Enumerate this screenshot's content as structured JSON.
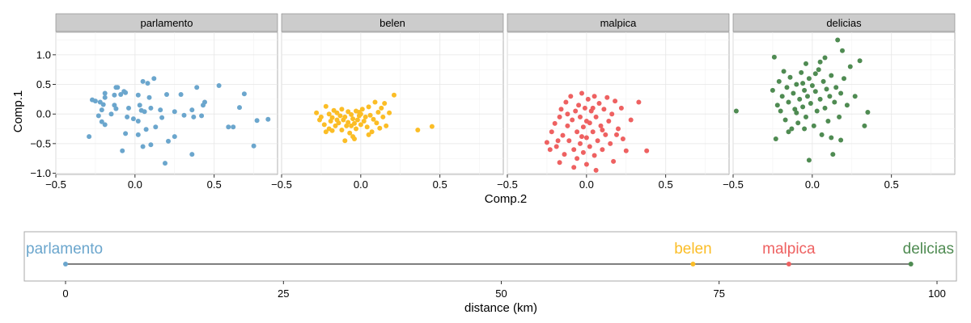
{
  "chart_data": [
    {
      "type": "scatter",
      "facets": [
        {
          "name": "parlamento",
          "color": "#6ba6cd",
          "points": [
            [
              -0.27,
              0.24
            ],
            [
              -0.25,
              0.22
            ],
            [
              -0.22,
              0.2
            ],
            [
              -0.19,
              0.35
            ],
            [
              -0.19,
              0.28
            ],
            [
              -0.2,
              0.16
            ],
            [
              -0.21,
              0.07
            ],
            [
              -0.23,
              -0.03
            ],
            [
              -0.21,
              -0.13
            ],
            [
              -0.19,
              -0.18
            ],
            [
              -0.13,
              0.32
            ],
            [
              -0.12,
              0.45
            ],
            [
              -0.11,
              0.45
            ],
            [
              -0.13,
              0.15
            ],
            [
              -0.12,
              0.09
            ],
            [
              -0.09,
              0.33
            ],
            [
              -0.07,
              0.38
            ],
            [
              -0.06,
              0.36
            ],
            [
              -0.05,
              -0.05
            ],
            [
              -0.04,
              0.1
            ],
            [
              -0.01,
              -0.08
            ],
            [
              -0.06,
              -0.33
            ],
            [
              -0.08,
              -0.62
            ],
            [
              0.02,
              -0.12
            ],
            [
              0.02,
              0.32
            ],
            [
              0.03,
              0.15
            ],
            [
              0.06,
              0.04
            ],
            [
              0.04,
              0.06
            ],
            [
              0.07,
              -0.26
            ],
            [
              0.05,
              -0.55
            ],
            [
              0.05,
              0.55
            ],
            [
              0.08,
              0.52
            ],
            [
              0.09,
              0.28
            ],
            [
              0.1,
              0.1
            ],
            [
              0.12,
              0.6
            ],
            [
              0.13,
              -0.22
            ],
            [
              0.16,
              0.07
            ],
            [
              0.17,
              -0.06
            ],
            [
              0.2,
              0.33
            ],
            [
              0.21,
              -0.46
            ],
            [
              0.19,
              -0.83
            ],
            [
              0.25,
              0.04
            ],
            [
              0.25,
              -0.38
            ],
            [
              0.29,
              0.33
            ],
            [
              0.36,
              0.07
            ],
            [
              0.37,
              -0.05
            ],
            [
              0.39,
              0.45
            ],
            [
              0.43,
              0.15
            ],
            [
              0.44,
              0.2
            ],
            [
              0.36,
              -0.68
            ],
            [
              0.42,
              -0.03
            ],
            [
              0.53,
              0.48
            ],
            [
              0.59,
              -0.22
            ],
            [
              0.62,
              -0.22
            ],
            [
              0.66,
              0.11
            ],
            [
              0.69,
              0.34
            ],
            [
              0.75,
              -0.54
            ],
            [
              0.77,
              -0.11
            ],
            [
              0.84,
              -0.09
            ],
            [
              -0.29,
              -0.38
            ],
            [
              0.1,
              -0.52
            ],
            [
              0.02,
              -0.35
            ],
            [
              -0.15,
              0.0
            ],
            [
              0.31,
              -0.02
            ]
          ]
        },
        {
          "name": "belen",
          "color": "#fbbd26",
          "points": [
            [
              -0.28,
              0.02
            ],
            [
              -0.26,
              -0.1
            ],
            [
              -0.25,
              -0.05
            ],
            [
              -0.23,
              -0.18
            ],
            [
              -0.22,
              0.13
            ],
            [
              -0.2,
              -0.25
            ],
            [
              -0.2,
              0.0
            ],
            [
              -0.19,
              -0.12
            ],
            [
              -0.18,
              -0.06
            ],
            [
              -0.17,
              0.06
            ],
            [
              -0.16,
              -0.2
            ],
            [
              -0.15,
              0.02
            ],
            [
              -0.14,
              -0.15
            ],
            [
              -0.13,
              -0.03
            ],
            [
              -0.12,
              -0.27
            ],
            [
              -0.12,
              0.08
            ],
            [
              -0.11,
              -0.1
            ],
            [
              -0.1,
              -0.05
            ],
            [
              -0.09,
              -0.2
            ],
            [
              -0.08,
              0.04
            ],
            [
              -0.08,
              -0.14
            ],
            [
              -0.07,
              -0.32
            ],
            [
              -0.06,
              -0.01
            ],
            [
              -0.06,
              -0.2
            ],
            [
              -0.05,
              -0.08
            ],
            [
              -0.04,
              -0.16
            ],
            [
              -0.03,
              0.05
            ],
            [
              -0.03,
              -0.25
            ],
            [
              -0.02,
              -0.1
            ],
            [
              -0.01,
              -0.03
            ],
            [
              0.0,
              -0.18
            ],
            [
              0.01,
              0.08
            ],
            [
              0.02,
              -0.12
            ],
            [
              0.03,
              -0.05
            ],
            [
              0.04,
              -0.22
            ],
            [
              0.05,
              0.12
            ],
            [
              0.06,
              -0.02
            ],
            [
              0.07,
              -0.3
            ],
            [
              0.08,
              -0.09
            ],
            [
              0.09,
              0.2
            ],
            [
              0.1,
              -0.15
            ],
            [
              0.11,
              0.03
            ],
            [
              0.12,
              -0.24
            ],
            [
              0.13,
              0.1
            ],
            [
              0.14,
              -0.05
            ],
            [
              0.15,
              0.18
            ],
            [
              0.16,
              -0.2
            ],
            [
              0.18,
              0.02
            ],
            [
              0.21,
              0.32
            ],
            [
              0.36,
              -0.27
            ],
            [
              0.45,
              -0.21
            ],
            [
              -0.1,
              -0.45
            ],
            [
              -0.05,
              -0.38
            ],
            [
              -0.18,
              -0.28
            ],
            [
              0.0,
              0.0
            ],
            [
              -0.15,
              -0.1
            ],
            [
              0.05,
              -0.35
            ],
            [
              -0.22,
              -0.3
            ],
            [
              -0.01,
              0.03
            ],
            [
              -0.04,
              -0.42
            ]
          ]
        },
        {
          "name": "malpica",
          "color": "#ee6161",
          "points": [
            [
              -0.25,
              -0.48
            ],
            [
              -0.23,
              -0.6
            ],
            [
              -0.22,
              -0.3
            ],
            [
              -0.2,
              -0.16
            ],
            [
              -0.19,
              -0.55
            ],
            [
              -0.17,
              -0.05
            ],
            [
              -0.17,
              -0.82
            ],
            [
              -0.16,
              0.08
            ],
            [
              -0.15,
              -0.36
            ],
            [
              -0.14,
              -0.68
            ],
            [
              -0.13,
              0.2
            ],
            [
              -0.12,
              -0.2
            ],
            [
              -0.11,
              -0.45
            ],
            [
              -0.1,
              0.3
            ],
            [
              -0.09,
              -0.1
            ],
            [
              -0.08,
              -0.6
            ],
            [
              -0.07,
              0.05
            ],
            [
              -0.06,
              -0.3
            ],
            [
              -0.06,
              -0.75
            ],
            [
              -0.05,
              0.15
            ],
            [
              -0.04,
              -0.05
            ],
            [
              -0.04,
              -0.5
            ],
            [
              -0.03,
              0.35
            ],
            [
              -0.02,
              -0.22
            ],
            [
              -0.02,
              -0.65
            ],
            [
              -0.01,
              0.1
            ],
            [
              0.0,
              -0.4
            ],
            [
              0.0,
              -0.85
            ],
            [
              0.01,
              0.25
            ],
            [
              0.02,
              -0.15
            ],
            [
              0.02,
              -0.55
            ],
            [
              0.03,
              0.05
            ],
            [
              0.04,
              -0.3
            ],
            [
              0.05,
              0.3
            ],
            [
              0.05,
              -0.7
            ],
            [
              0.06,
              -0.05
            ],
            [
              0.07,
              -0.45
            ],
            [
              0.08,
              0.18
            ],
            [
              0.09,
              -0.2
            ],
            [
              0.1,
              -0.6
            ],
            [
              0.11,
              0.08
            ],
            [
              0.12,
              -0.35
            ],
            [
              0.13,
              0.28
            ],
            [
              0.14,
              -0.12
            ],
            [
              0.15,
              -0.5
            ],
            [
              0.16,
              0.0
            ],
            [
              0.17,
              -0.8
            ],
            [
              0.18,
              0.22
            ],
            [
              0.2,
              -0.25
            ],
            [
              0.22,
              0.1
            ],
            [
              0.23,
              -0.42
            ],
            [
              0.25,
              -0.62
            ],
            [
              0.28,
              -0.1
            ],
            [
              0.33,
              0.2
            ],
            [
              0.38,
              -0.62
            ],
            [
              -0.08,
              -0.9
            ],
            [
              0.06,
              -0.95
            ],
            [
              -0.03,
              -0.38
            ],
            [
              0.1,
              -0.27
            ],
            [
              -0.12,
              0.0
            ],
            [
              0.04,
              0.1
            ],
            [
              -0.18,
              -0.45
            ],
            [
              0.19,
              -0.35
            ],
            [
              0.0,
              -0.12
            ]
          ]
        },
        {
          "name": "delicias",
          "color": "#4f8b52",
          "points": [
            [
              -0.48,
              0.05
            ],
            [
              -0.25,
              0.4
            ],
            [
              -0.24,
              0.96
            ],
            [
              -0.23,
              -0.42
            ],
            [
              -0.22,
              0.15
            ],
            [
              -0.21,
              0.55
            ],
            [
              -0.2,
              0.05
            ],
            [
              -0.19,
              0.3
            ],
            [
              -0.18,
              0.72
            ],
            [
              -0.17,
              -0.1
            ],
            [
              -0.16,
              0.45
            ],
            [
              -0.15,
              0.2
            ],
            [
              -0.14,
              0.62
            ],
            [
              -0.13,
              -0.25
            ],
            [
              -0.12,
              0.35
            ],
            [
              -0.11,
              0.08
            ],
            [
              -0.1,
              0.5
            ],
            [
              -0.09,
              -0.15
            ],
            [
              -0.08,
              0.25
            ],
            [
              -0.07,
              0.7
            ],
            [
              -0.06,
              0.12
            ],
            [
              -0.05,
              0.4
            ],
            [
              -0.04,
              0.85
            ],
            [
              -0.04,
              -0.05
            ],
            [
              -0.03,
              0.3
            ],
            [
              -0.02,
              0.6
            ],
            [
              -0.02,
              -0.78
            ],
            [
              -0.01,
              0.18
            ],
            [
              0.0,
              0.48
            ],
            [
              0.01,
              -0.2
            ],
            [
              0.02,
              0.38
            ],
            [
              0.03,
              0.05
            ],
            [
              0.04,
              0.75
            ],
            [
              0.05,
              0.25
            ],
            [
              0.06,
              -0.35
            ],
            [
              0.07,
              0.55
            ],
            [
              0.08,
              0.1
            ],
            [
              0.09,
              0.42
            ],
            [
              0.1,
              -0.12
            ],
            [
              0.11,
              0.3
            ],
            [
              0.12,
              0.65
            ],
            [
              0.13,
              -0.68
            ],
            [
              0.14,
              0.2
            ],
            [
              0.15,
              0.45
            ],
            [
              0.16,
              1.25
            ],
            [
              0.17,
              -0.05
            ],
            [
              0.18,
              0.35
            ],
            [
              0.19,
              1.07
            ],
            [
              0.2,
              0.6
            ],
            [
              0.22,
              0.15
            ],
            [
              0.24,
              0.8
            ],
            [
              0.27,
              0.3
            ],
            [
              0.3,
              0.9
            ],
            [
              0.33,
              -0.2
            ],
            [
              0.35,
              0.03
            ],
            [
              -0.05,
              -0.25
            ],
            [
              0.02,
              0.68
            ],
            [
              -0.15,
              -0.3
            ],
            [
              0.08,
              0.95
            ],
            [
              -0.1,
              0.02
            ],
            [
              0.12,
              -0.4
            ],
            [
              0.18,
              -0.44
            ],
            [
              -0.06,
              0.52
            ],
            [
              0.05,
              0.88
            ]
          ]
        }
      ],
      "xlabel": "Comp.2",
      "ylabel": "Comp.1",
      "xlim": [
        -0.5,
        0.9
      ],
      "ylim": [
        -1.02,
        1.38
      ],
      "xticks": [
        "−0.5",
        "0.0",
        "0.5"
      ],
      "xtick_values": [
        -0.5,
        0.0,
        0.5
      ],
      "yticks": [
        "1.0",
        "0.5",
        "0.0",
        "−0.5",
        "−1.0"
      ],
      "ytick_values": [
        1.0,
        0.5,
        0.0,
        -0.5,
        -1.0
      ],
      "grid": true
    },
    {
      "type": "line",
      "sites": [
        {
          "name": "parlamento",
          "distance": 0,
          "color": "#6ba6cd"
        },
        {
          "name": "belen",
          "distance": 72,
          "color": "#fbbd26"
        },
        {
          "name": "malpica",
          "distance": 83,
          "color": "#ee6161"
        },
        {
          "name": "delicias",
          "distance": 97,
          "color": "#4f8b52"
        }
      ],
      "xlabel": "distance (km)",
      "xlim": [
        0,
        100
      ],
      "xticks": [
        "0",
        "25",
        "50",
        "75",
        "100"
      ],
      "xtick_values": [
        0,
        25,
        50,
        75,
        100
      ]
    }
  ]
}
